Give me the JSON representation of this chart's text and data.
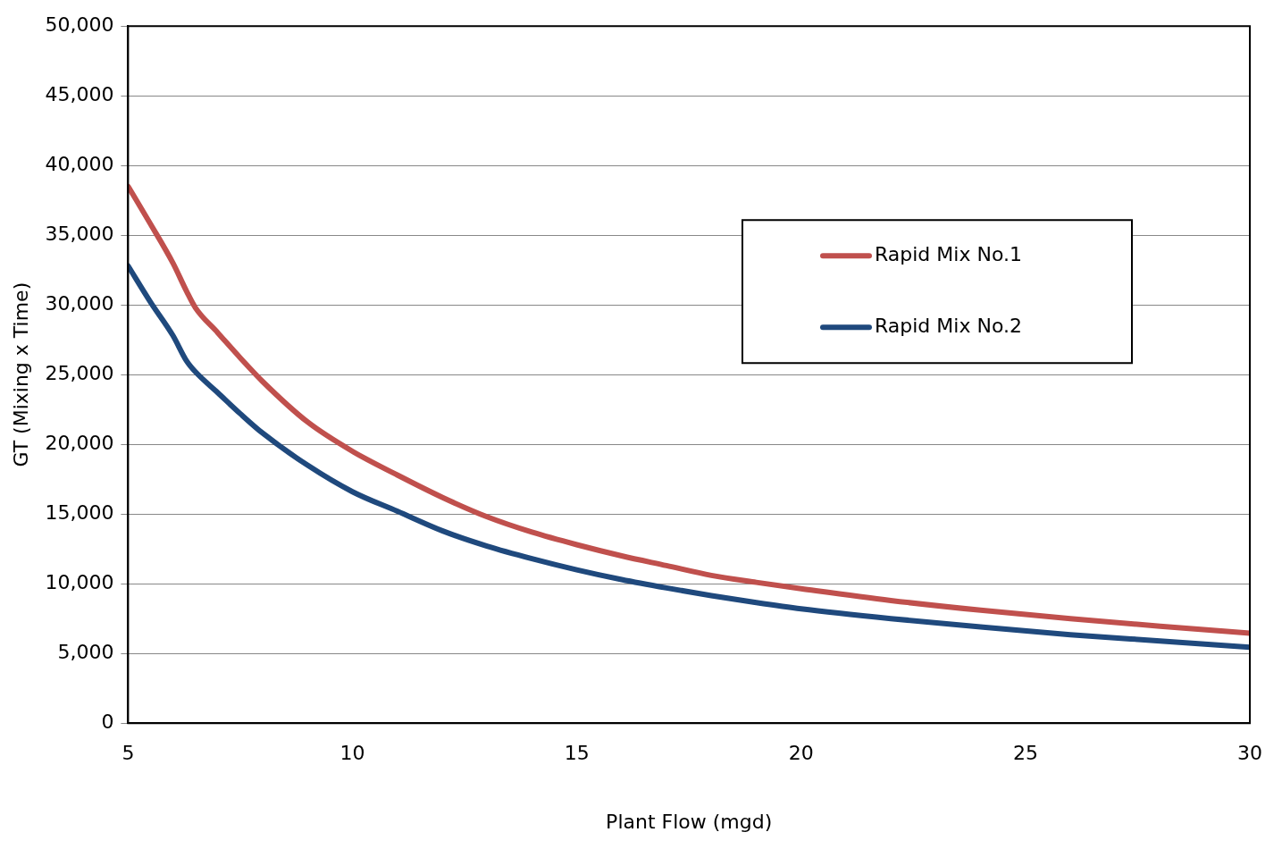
{
  "chart_data": {
    "type": "line",
    "xlabel": "Plant Flow (mgd)",
    "ylabel": "GT (Mixing x Time)",
    "xlim": [
      5,
      30
    ],
    "xticks": [
      5,
      10,
      15,
      20,
      25,
      30
    ],
    "ylim": [
      0,
      50000
    ],
    "yticks": [
      {
        "value": 0,
        "label": "0"
      },
      {
        "value": 5000,
        "label": "5,000"
      },
      {
        "value": 10000,
        "label": "10,000"
      },
      {
        "value": 15000,
        "label": "15,000"
      },
      {
        "value": 20000,
        "label": "20,000"
      },
      {
        "value": 25000,
        "label": "25,000"
      },
      {
        "value": 30000,
        "label": "30,000"
      },
      {
        "value": 35000,
        "label": "35,000"
      },
      {
        "value": 40000,
        "label": "40,000"
      },
      {
        "value": 45000,
        "label": "45,000"
      },
      {
        "value": 50000,
        "label": "50,000"
      }
    ],
    "grid": "y",
    "legend": "top right",
    "marker": "none",
    "line_style": "solid",
    "x": [
      5,
      5.5,
      6,
      6.3,
      6.5,
      7,
      7.5,
      8,
      9,
      10,
      11,
      12,
      13,
      14,
      15,
      16,
      17,
      18,
      19,
      20,
      22,
      24,
      26,
      28,
      30
    ],
    "series": [
      {
        "name": "Rapid Mix No.1",
        "color": "#c0504d",
        "values": [
          38500,
          35800,
          33000,
          31000,
          29800,
          28000,
          26200,
          24500,
          21600,
          19500,
          17800,
          16200,
          14800,
          13700,
          12800,
          12000,
          11300,
          10600,
          10100,
          9650,
          8800,
          8100,
          7500,
          6950,
          6450
        ]
      },
      {
        "name": "Rapid Mix No.2",
        "color": "#1f497d",
        "values": [
          32800,
          30200,
          27800,
          26000,
          25200,
          23700,
          22200,
          20800,
          18500,
          16600,
          15200,
          13800,
          12700,
          11800,
          11000,
          10300,
          9700,
          9150,
          8650,
          8200,
          7500,
          6900,
          6350,
          5900,
          5450
        ]
      }
    ]
  }
}
